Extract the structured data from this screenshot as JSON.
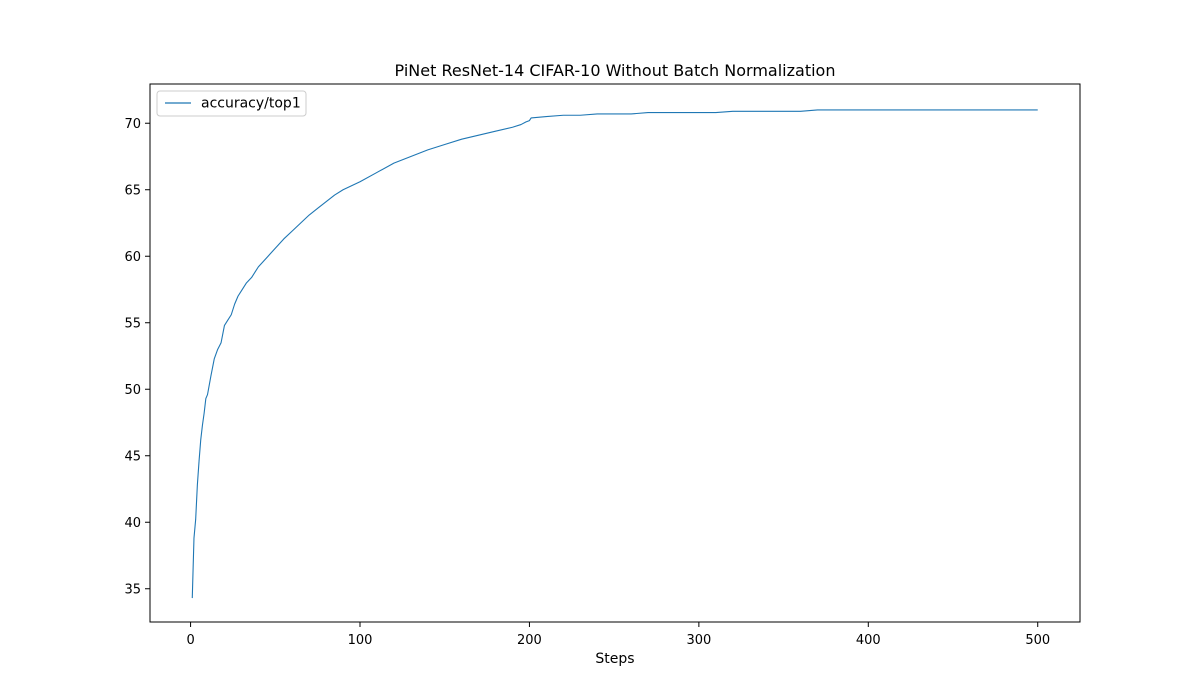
{
  "chart_data": {
    "type": "line",
    "title": "PiNet ResNet-14 CIFAR-10 Without Batch Normalization",
    "xlabel": "Steps",
    "ylabel": "",
    "xlim": [
      -23.95,
      524.95
    ],
    "ylim": [
      32.5,
      72.95
    ],
    "xticks": [
      0,
      100,
      200,
      300,
      400,
      500
    ],
    "yticks": [
      35,
      40,
      45,
      50,
      55,
      60,
      65,
      70
    ],
    "grid": false,
    "legend": "top-left",
    "series": [
      {
        "name": "accuracy/top1",
        "color": "#1f77b4",
        "x": [
          1,
          2,
          3,
          4,
          5,
          6,
          7,
          8,
          9,
          10,
          12,
          14,
          16,
          18,
          20,
          22,
          24,
          26,
          28,
          30,
          33,
          36,
          40,
          45,
          50,
          55,
          60,
          65,
          70,
          75,
          80,
          85,
          90,
          95,
          100,
          110,
          120,
          130,
          140,
          150,
          160,
          170,
          180,
          190,
          195,
          198,
          200,
          201,
          210,
          220,
          230,
          240,
          250,
          260,
          270,
          280,
          290,
          300,
          310,
          320,
          330,
          340,
          350,
          360,
          370,
          380,
          390,
          400,
          410,
          420,
          430,
          440,
          450,
          460,
          470,
          480,
          490,
          500
        ],
        "values": [
          34.3,
          38.8,
          40.2,
          42.8,
          44.6,
          46.2,
          47.3,
          48.2,
          49.3,
          49.6,
          51.0,
          52.3,
          53.0,
          53.5,
          54.8,
          55.2,
          55.6,
          56.4,
          57.0,
          57.4,
          58.0,
          58.4,
          59.2,
          59.9,
          60.6,
          61.3,
          61.9,
          62.5,
          63.1,
          63.6,
          64.1,
          64.6,
          65.0,
          65.3,
          65.6,
          66.3,
          67.0,
          67.5,
          68.0,
          68.4,
          68.8,
          69.1,
          69.4,
          69.7,
          69.9,
          70.1,
          70.2,
          70.4,
          70.5,
          70.6,
          70.6,
          70.7,
          70.7,
          70.7,
          70.8,
          70.8,
          70.8,
          70.8,
          70.8,
          70.9,
          70.9,
          70.9,
          70.9,
          70.9,
          71.0,
          71.0,
          71.0,
          71.0,
          71.0,
          71.0,
          71.0,
          71.0,
          71.0,
          71.0,
          71.0,
          71.0,
          71.0,
          71.0
        ]
      }
    ]
  }
}
